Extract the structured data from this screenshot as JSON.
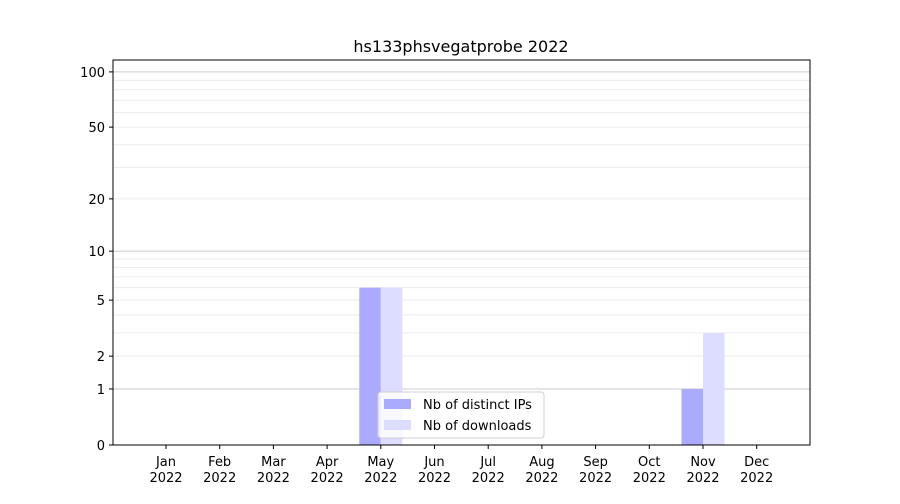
{
  "chart_data": {
    "type": "bar",
    "title": "hs133phsvegatprobe 2022",
    "xlabel": "",
    "ylabel": "",
    "yscale": "log(1+y)",
    "ylim": [
      0,
      116
    ],
    "yticks": [
      0,
      1,
      2,
      5,
      10,
      20,
      50,
      100
    ],
    "grid": true,
    "legend_position": "lower-center",
    "categories": [
      "Jan\n2022",
      "Feb\n2022",
      "Mar\n2022",
      "Apr\n2022",
      "May\n2022",
      "Jun\n2022",
      "Jul\n2022",
      "Aug\n2022",
      "Sep\n2022",
      "Oct\n2022",
      "Nov\n2022",
      "Dec\n2022"
    ],
    "series": [
      {
        "name": "Nb of distinct IPs",
        "color": "#aaaaff",
        "values": [
          0,
          0,
          0,
          0,
          6,
          0,
          0,
          0,
          0,
          0,
          1,
          0
        ]
      },
      {
        "name": "Nb of downloads",
        "color": "#ddddff",
        "values": [
          0,
          0,
          0,
          0,
          6,
          0,
          0,
          0,
          0,
          0,
          3,
          0
        ]
      }
    ]
  }
}
